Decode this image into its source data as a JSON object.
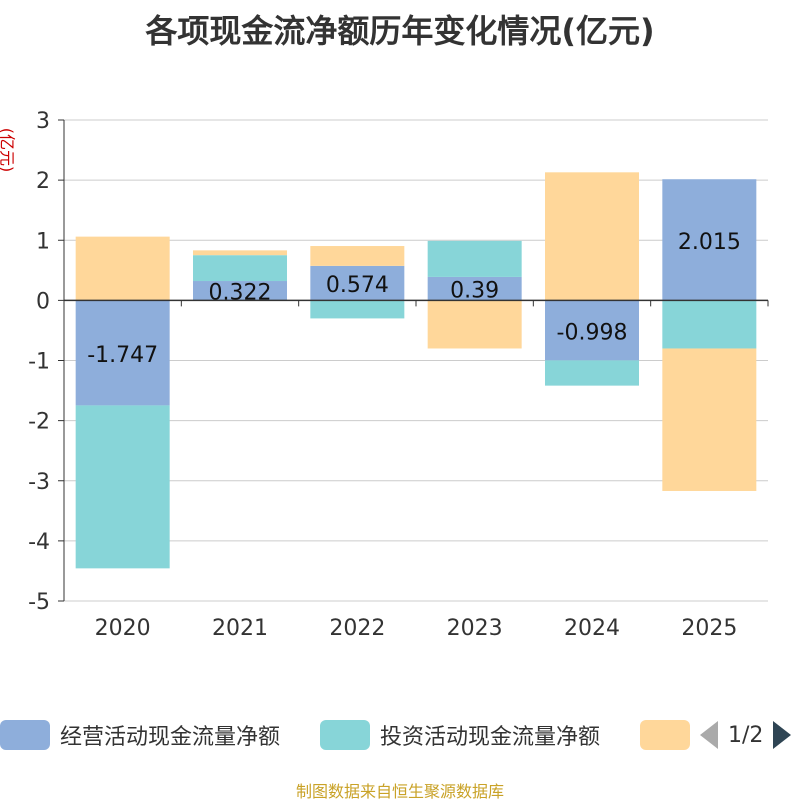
{
  "chart_data": {
    "type": "bar",
    "stacked": true,
    "title": "各项现金流净额历年变化情况(亿元)",
    "ylabel": "(亿元)",
    "categories": [
      "2020",
      "2021",
      "2022",
      "2023",
      "2024",
      "2025"
    ],
    "ylim": [
      -5,
      3
    ],
    "yticks": [
      3,
      2,
      1,
      0,
      -1,
      -2,
      -3,
      -4,
      -5
    ],
    "series": [
      {
        "name": "经营活动现金流量净额",
        "color": "#8eaedb",
        "values": [
          -1.747,
          0.322,
          0.574,
          0.39,
          -0.998,
          2.015
        ],
        "labels": [
          "-1.747",
          "0.322",
          "0.574",
          "0.39",
          "-0.998",
          "2.015"
        ]
      },
      {
        "name": "投资活动现金流量净额",
        "color": "#87d5d8",
        "values": [
          -2.71,
          0.43,
          -0.3,
          0.6,
          -0.42,
          -0.8
        ]
      },
      {
        "name": "",
        "color": "#ffd79a",
        "values": [
          1.06,
          0.08,
          0.33,
          -0.8,
          2.13,
          -2.37
        ]
      }
    ]
  },
  "legend": {
    "pager_text": "1/2"
  },
  "source": "制图数据来自恒生聚源数据库"
}
